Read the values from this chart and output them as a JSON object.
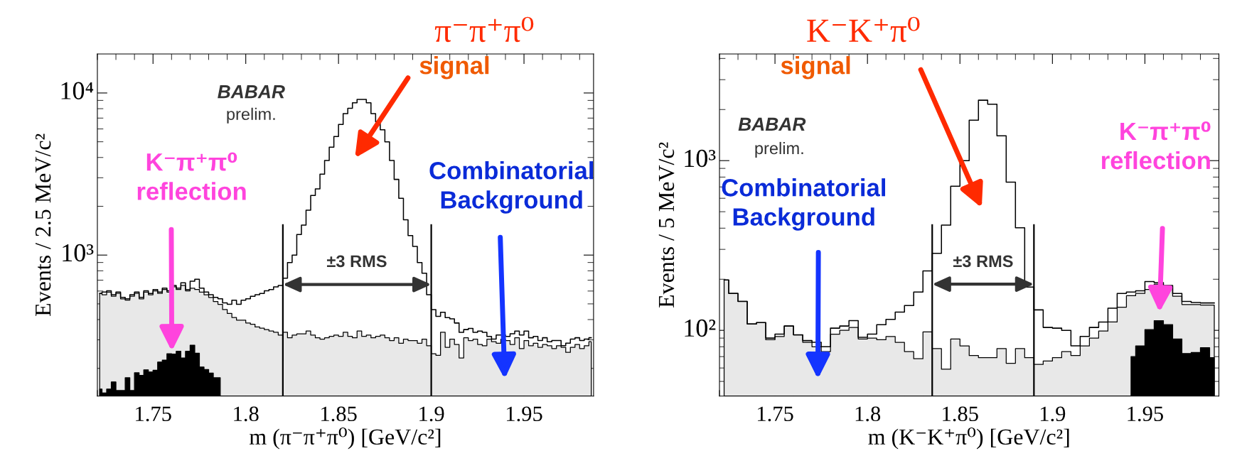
{
  "chart_data": [
    {
      "type": "step",
      "title": "π⁻π⁺π⁰",
      "xlabel": "m (π⁻π⁺π⁰) [GeV/c²]",
      "ylabel": "Events / 2.5 MeV/c²",
      "log": "y",
      "xlim": [
        1.72,
        1.9875
      ],
      "xticks": [
        1.75,
        1.8,
        1.85,
        1.9,
        1.95
      ],
      "ylim": [
        135,
        17400
      ],
      "yticks": [
        {
          "value": 1000,
          "label": "10³"
        },
        {
          "value": 10000,
          "label": "10⁴"
        }
      ],
      "x": [
        1.72125,
        1.72375,
        1.72625,
        1.72875,
        1.73125,
        1.73375,
        1.73625,
        1.73875,
        1.74125,
        1.74375,
        1.74625,
        1.74875,
        1.75125,
        1.75375,
        1.75625,
        1.75875,
        1.76125,
        1.76375,
        1.76625,
        1.76875,
        1.77125,
        1.77375,
        1.77625,
        1.77875,
        1.78125,
        1.78375,
        1.78625,
        1.78875,
        1.79125,
        1.79375,
        1.79625,
        1.79875,
        1.80125,
        1.80375,
        1.80625,
        1.80875,
        1.81125,
        1.81375,
        1.81625,
        1.81875,
        1.82125,
        1.82375,
        1.82625,
        1.82875,
        1.83125,
        1.83375,
        1.83625,
        1.83875,
        1.84125,
        1.84375,
        1.84625,
        1.84875,
        1.85125,
        1.85375,
        1.85625,
        1.85875,
        1.86125,
        1.86375,
        1.86625,
        1.86875,
        1.87125,
        1.87375,
        1.87625,
        1.87875,
        1.88125,
        1.88375,
        1.88625,
        1.88875,
        1.89125,
        1.89375,
        1.89625,
        1.89875,
        1.90125,
        1.90375,
        1.90625,
        1.90875,
        1.91125,
        1.91375,
        1.91625,
        1.91875,
        1.92125,
        1.92375,
        1.92625,
        1.92875,
        1.93125,
        1.93375,
        1.93625,
        1.93875,
        1.94125,
        1.94375,
        1.94625,
        1.94875,
        1.95125,
        1.95375,
        1.95625,
        1.95875,
        1.96125,
        1.96375,
        1.96625,
        1.96875,
        1.97125,
        1.97375,
        1.97625,
        1.97875,
        1.98125,
        1.98375,
        1.98625
      ],
      "series": [
        {
          "type": "area",
          "color": "#e8e8e8",
          "values": [
            580,
            569,
            591,
            557,
            580,
            537,
            527,
            557,
            580,
            537,
            591,
            569,
            602,
            580,
            613,
            591,
            637,
            613,
            650,
            602,
            625,
            613,
            591,
            569,
            548,
            517,
            497,
            461,
            437,
            412,
            397,
            397,
            381,
            374,
            360,
            354,
            347,
            340,
            334,
            321,
            334,
            309,
            321,
            327,
            327,
            340,
            321,
            309,
            303,
            309,
            315,
            321,
            315,
            334,
            315,
            309,
            340,
            315,
            321,
            309,
            315,
            321,
            309,
            297,
            309,
            286,
            303,
            297,
            297,
            286,
            303,
            276,
            246,
            241,
            334,
            270,
            303,
            281,
            232,
            309,
            297,
            303,
            281,
            276,
            303,
            292,
            286,
            303,
            297,
            281,
            309,
            265,
            297,
            276,
            286,
            270,
            281,
            276,
            265,
            276,
            270,
            251,
            270,
            281,
            265,
            276,
            292
          ]
        },
        {
          "type": "area",
          "color": "#000000",
          "x": [
            1.72125,
            1.72375,
            1.72625,
            1.72875,
            1.73125,
            1.73375,
            1.73625,
            1.73875,
            1.74125,
            1.74375,
            1.74625,
            1.74875,
            1.75125,
            1.75375,
            1.75625,
            1.75875,
            1.76125,
            1.76375,
            1.76625,
            1.76875,
            1.77125,
            1.77375,
            1.77625,
            1.77875,
            1.78125,
            1.78375,
            1.78625
          ],
          "values": [
            149,
            141,
            149,
            165,
            146,
            146,
            175,
            146,
            188,
            181,
            196,
            190,
            195,
            219,
            225,
            246,
            245,
            255,
            232,
            255,
            278,
            248,
            204,
            197,
            187,
            175,
            175
          ]
        },
        {
          "color": "#000000",
          "values": [
            580,
            591,
            602,
            569,
            591,
            548,
            537,
            569,
            591,
            548,
            602,
            580,
            613,
            591,
            625,
            602,
            650,
            625,
            675,
            613,
            690,
            710,
            625,
            591,
            569,
            548,
            537,
            507,
            497,
            527,
            497,
            527,
            537,
            557,
            569,
            580,
            602,
            613,
            637,
            650,
            720,
            899,
            1000,
            1340,
            1530,
            1890,
            2330,
            2560,
            3160,
            3830,
            4630,
            5390,
            6400,
            7460,
            8050,
            8690,
            9130,
            9130,
            8690,
            7460,
            6650,
            5930,
            5000,
            3830,
            2930,
            2240,
            1650,
            1320,
            1130,
            899,
            772,
            569,
            461,
            419,
            444,
            411,
            404,
            381,
            334,
            347,
            353,
            334,
            340,
            334,
            315,
            303,
            321,
            321,
            315,
            327,
            340,
            321,
            340,
            309,
            315,
            297,
            309,
            292,
            297,
            297,
            276,
            286,
            303,
            309,
            297,
            303,
            309
          ]
        }
      ],
      "ref_lines": [
        {
          "axis": "x",
          "value": 1.82,
          "color": "#000000"
        },
        {
          "axis": "x",
          "value": 1.9,
          "color": "#000000"
        }
      ],
      "annotations": [
        "BABAR",
        "prelim.",
        "signal",
        "K⁻π⁺π⁰\nreflection",
        "Combinatorial\nBackground",
        "±3 RMS"
      ]
    },
    {
      "type": "step",
      "title": "K⁻K⁺π⁰",
      "xlabel": "m (K⁻K⁺π⁰) [GeV/c²]",
      "ylabel": "Events / 5 MeV/c²",
      "log": "y",
      "xlim": [
        1.72,
        1.99
      ],
      "xticks": [
        1.75,
        1.8,
        1.85,
        1.9,
        1.95
      ],
      "ylim": [
        41,
        4250
      ],
      "yticks": [
        {
          "value": 100,
          "label": "10²"
        },
        {
          "value": 1000,
          "label": "10³"
        }
      ],
      "x": [
        1.7225,
        1.7275,
        1.7325,
        1.7375,
        1.7425,
        1.7475,
        1.7525,
        1.7575,
        1.7625,
        1.7675,
        1.7725,
        1.7775,
        1.7825,
        1.7875,
        1.7925,
        1.7975,
        1.8025,
        1.8075,
        1.8125,
        1.8175,
        1.8225,
        1.8275,
        1.8325,
        1.8375,
        1.8425,
        1.8475,
        1.8525,
        1.8575,
        1.8625,
        1.8675,
        1.8725,
        1.8775,
        1.8825,
        1.8875,
        1.8925,
        1.8975,
        1.9025,
        1.9075,
        1.9125,
        1.9175,
        1.9225,
        1.9275,
        1.9325,
        1.9375,
        1.9425,
        1.9475,
        1.9525,
        1.9575,
        1.9625,
        1.9675,
        1.9725,
        1.9775,
        1.9825,
        1.9875
      ],
      "series": [
        {
          "type": "area",
          "color": "#e8e8e8",
          "values": [
            198,
            165,
            148,
            109,
            111,
            88,
            92,
            106,
            94,
            85,
            80,
            75,
            95,
            100,
            104,
            89,
            90,
            88,
            92,
            85,
            75,
            68,
            98,
            78,
            59,
            89,
            81,
            71,
            69,
            69,
            78,
            64,
            78,
            69,
            63,
            66,
            69,
            75,
            71,
            81,
            90,
            99,
            112,
            137,
            160,
            165,
            174,
            187,
            180,
            159,
            142,
            142,
            141,
            141
          ]
        },
        {
          "type": "area",
          "color": "#000000",
          "x": [
            1.9425,
            1.9475,
            1.9525,
            1.9575,
            1.9625,
            1.9675,
            1.9725,
            1.9775,
            1.9825,
            1.9875
          ],
          "values": [
            70,
            81,
            101,
            114,
            108,
            89,
            73,
            74,
            79,
            69
          ]
        },
        {
          "color": "#000000",
          "values": [
            198,
            165,
            148,
            109,
            111,
            90,
            95,
            106,
            94,
            87,
            85,
            80,
            103,
            106,
            114,
            91,
            95,
            108,
            116,
            128,
            140,
            168,
            224,
            284,
            417,
            707,
            1000,
            1730,
            2270,
            2150,
            1400,
            747,
            402,
            180,
            132,
            104,
            103,
            100,
            81,
            92,
            104,
            112,
            135,
            165,
            168,
            171,
            194,
            191,
            184,
            165,
            148,
            146,
            145,
            145
          ]
        }
      ],
      "ref_lines": [
        {
          "axis": "x",
          "value": 1.835,
          "color": "#000000"
        },
        {
          "axis": "x",
          "value": 1.89,
          "color": "#000000"
        }
      ],
      "annotations": [
        "BABAR",
        "prelim.",
        "signal",
        "K⁻π⁺π⁰\nreflection",
        "Combinatorial\nBackground",
        "±3 RMS"
      ]
    }
  ]
}
